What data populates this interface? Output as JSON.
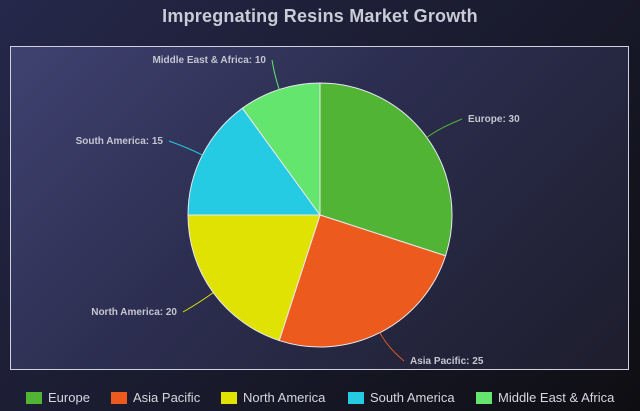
{
  "chart_data": {
    "type": "pie",
    "title": "Impregnating Resins Market Growth",
    "categories": [
      "Europe",
      "Asia Pacific",
      "North America",
      "South America",
      "Middle East & Africa"
    ],
    "values": [
      30,
      25,
      20,
      15,
      10
    ],
    "labels": [
      "Europe: 30",
      "Asia Pacific: 25",
      "North America: 20",
      "South America: 15",
      "Middle East & Africa: 10"
    ],
    "colors": [
      "#52b435",
      "#ec5a1d",
      "#dfe202",
      "#24cbe3",
      "#63e56e"
    ],
    "legend": [
      "Europe",
      "Asia Pacific",
      "North America",
      "South America",
      "Middle East & Africa"
    ],
    "legend_position": "bottom"
  }
}
